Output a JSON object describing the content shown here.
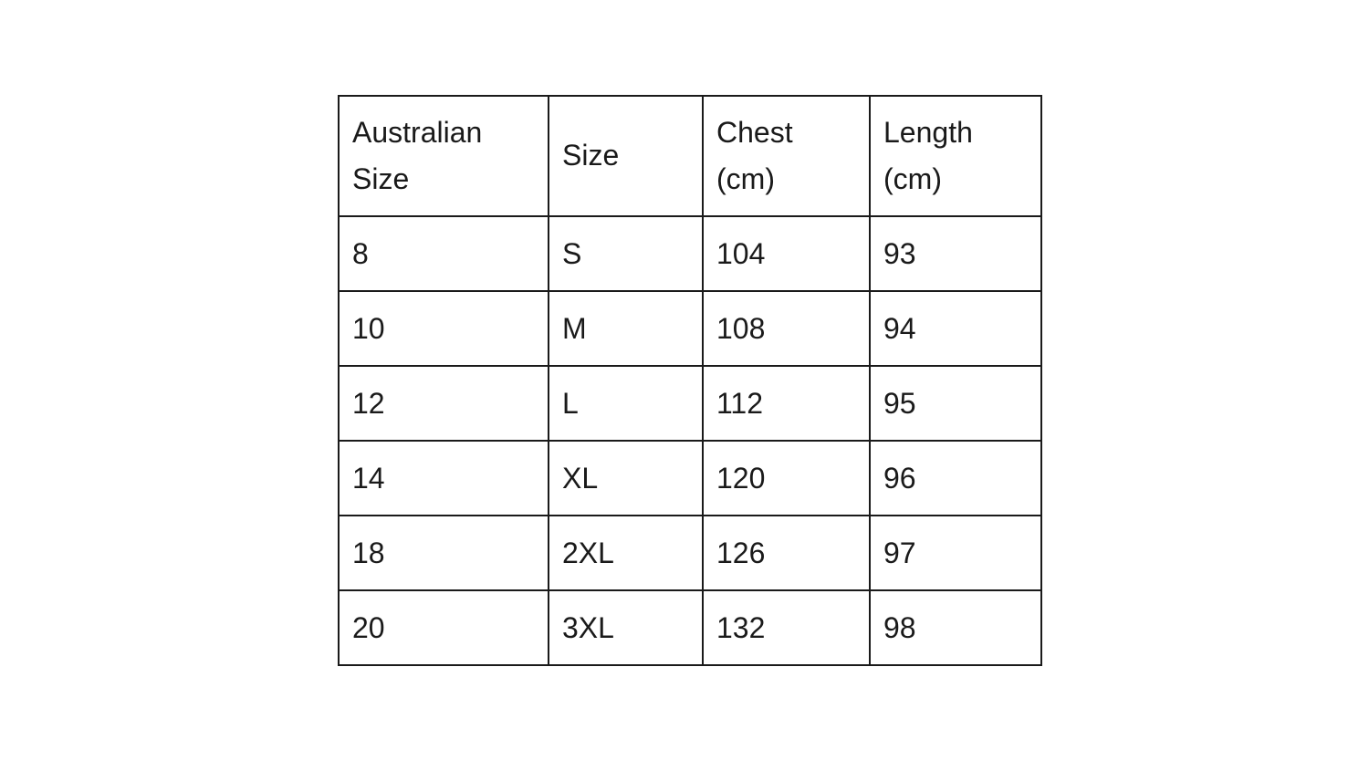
{
  "chart_data": {
    "type": "table",
    "columns": [
      "Australian Size",
      "Size",
      "Chest (cm)",
      "Length (cm)"
    ],
    "rows": [
      [
        "8",
        "S",
        "104",
        "93"
      ],
      [
        "10",
        "M",
        "108",
        "94"
      ],
      [
        "12",
        "L",
        "112",
        "95"
      ],
      [
        "14",
        "XL",
        "120",
        "96"
      ],
      [
        "18",
        "2XL",
        "126",
        "97"
      ],
      [
        "20",
        "3XL",
        "132",
        "98"
      ]
    ],
    "layout": {
      "grid": "on",
      "header_position": "top"
    }
  },
  "colors": {
    "border": "#1a1a1a",
    "text": "#1a1a1a",
    "background": "#ffffff"
  }
}
